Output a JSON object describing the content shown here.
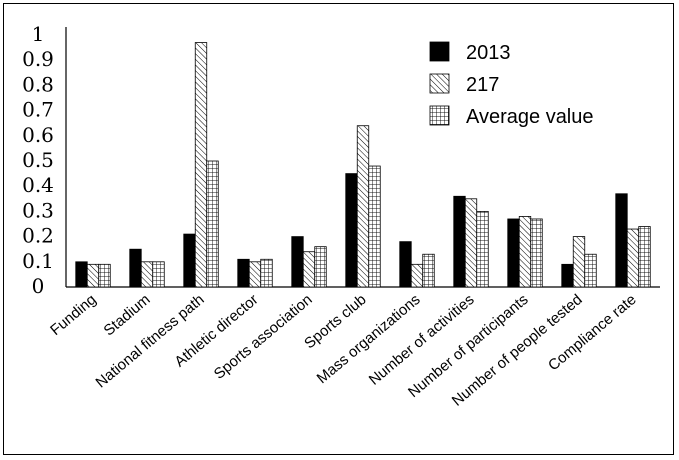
{
  "chart_data": {
    "type": "bar",
    "title": "",
    "xlabel": "",
    "ylabel": "",
    "ylim": [
      0,
      1
    ],
    "yticks": [
      "0",
      "0.1",
      "0.2",
      "0.3",
      "0.4",
      "0.5",
      "0.6",
      "0.7",
      "0.8",
      "0.9",
      "1"
    ],
    "categories": [
      "Funding",
      "Stadium",
      "National fitness path",
      "Athletic director",
      "Sports association",
      "Sports club",
      "Mass organizations",
      "Number of activities",
      "Number of participants",
      "Number of people tested",
      "Compliance rate"
    ],
    "series": [
      {
        "name": "2013",
        "color": "#000000",
        "pattern": "solid",
        "values": [
          0.1,
          0.15,
          0.21,
          0.11,
          0.2,
          0.45,
          0.18,
          0.36,
          0.27,
          0.09,
          0.37
        ]
      },
      {
        "name": "217",
        "color": "#000000",
        "pattern": "diagonal-hatch",
        "values": [
          0.09,
          0.1,
          0.97,
          0.1,
          0.14,
          0.64,
          0.09,
          0.35,
          0.28,
          0.2,
          0.23
        ]
      },
      {
        "name": "Average value",
        "color": "#000000",
        "pattern": "grid",
        "values": [
          0.09,
          0.1,
          0.5,
          0.11,
          0.16,
          0.48,
          0.13,
          0.3,
          0.27,
          0.13,
          0.24
        ]
      }
    ],
    "grid": false,
    "legend_position": "top-right"
  }
}
